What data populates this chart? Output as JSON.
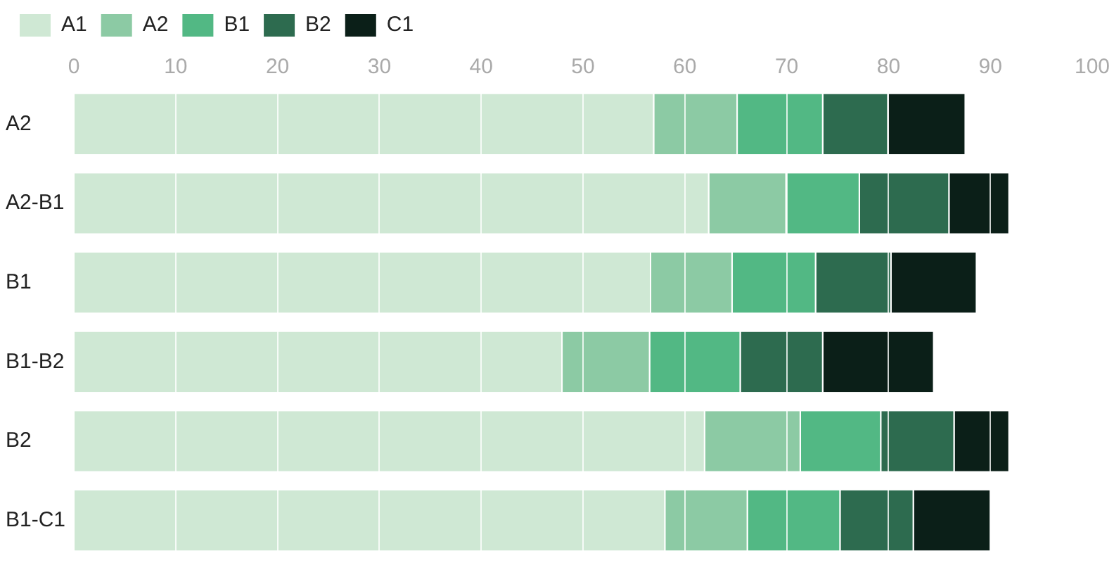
{
  "chart_data": {
    "type": "bar",
    "orientation": "horizontal",
    "stacked": true,
    "categories": [
      "A2",
      "A2-B1",
      "B1",
      "B1-B2",
      "B2",
      "B1-C1"
    ],
    "series": [
      {
        "name": "A1",
        "color": "#cfe8d4",
        "values": [
          57.0,
          62.4,
          56.7,
          48.0,
          62.0,
          58.1
        ]
      },
      {
        "name": "A2",
        "color": "#8ccaa4",
        "values": [
          8.2,
          7.6,
          8.0,
          8.6,
          9.4,
          8.1
        ]
      },
      {
        "name": "B1",
        "color": "#52b884",
        "values": [
          8.4,
          7.2,
          8.2,
          8.9,
          7.9,
          9.1
        ]
      },
      {
        "name": "B2",
        "color": "#2d6b4f",
        "values": [
          6.4,
          8.8,
          7.4,
          8.1,
          7.2,
          7.2
        ]
      },
      {
        "name": "C1",
        "color": "#0b1f18",
        "values": [
          7.6,
          5.9,
          8.4,
          10.9,
          5.4,
          7.6
        ]
      }
    ],
    "xlim": [
      0,
      100
    ],
    "xticks": [
      0,
      10,
      20,
      30,
      40,
      50,
      60,
      70,
      80,
      90,
      100
    ],
    "grid": "x",
    "legend": "top left"
  }
}
